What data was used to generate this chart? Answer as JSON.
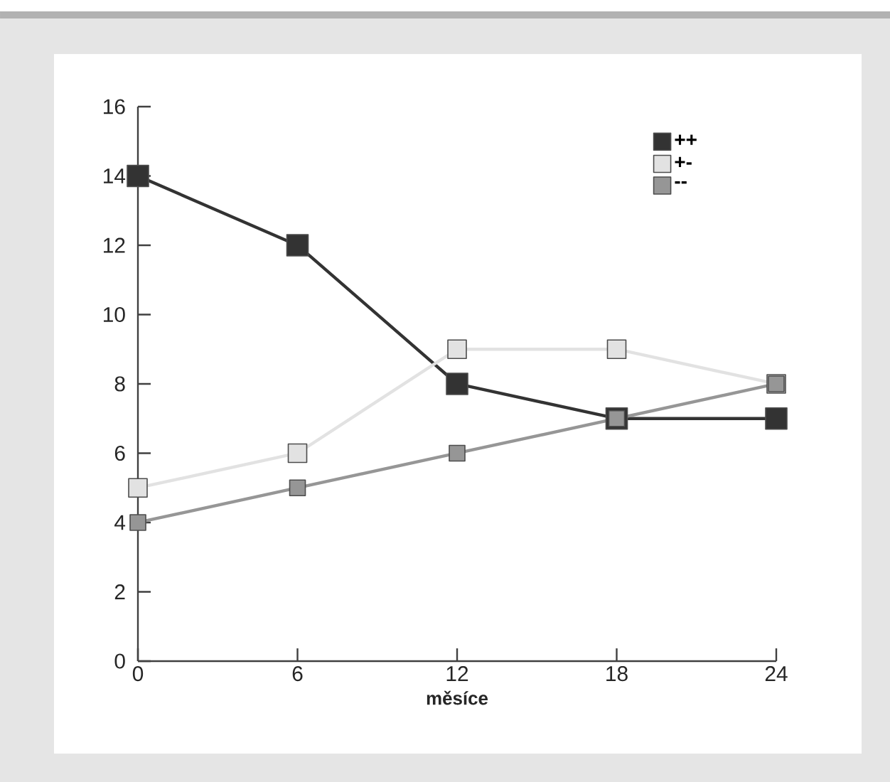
{
  "chart_data": {
    "type": "line",
    "xlabel": "měsíce",
    "x": [
      0,
      6,
      12,
      18,
      24
    ],
    "series": [
      {
        "name": "++",
        "color": "#333333",
        "values": [
          14,
          12,
          8,
          7,
          7
        ]
      },
      {
        "name": "+-",
        "color": "#e2e2e2",
        "values": [
          5,
          6,
          9,
          9,
          8
        ]
      },
      {
        "name": "--",
        "color": "#969696",
        "values": [
          4,
          5,
          6,
          7,
          8
        ]
      }
    ],
    "xlim": [
      0,
      24
    ],
    "xticks": [
      0,
      6,
      12,
      18,
      24
    ],
    "ylim": [
      0,
      16
    ],
    "yticks": [
      0,
      2,
      4,
      6,
      8,
      10,
      12,
      14,
      16
    ],
    "marker": "square",
    "line_style": "solid",
    "legend": "top right",
    "grid": false
  }
}
